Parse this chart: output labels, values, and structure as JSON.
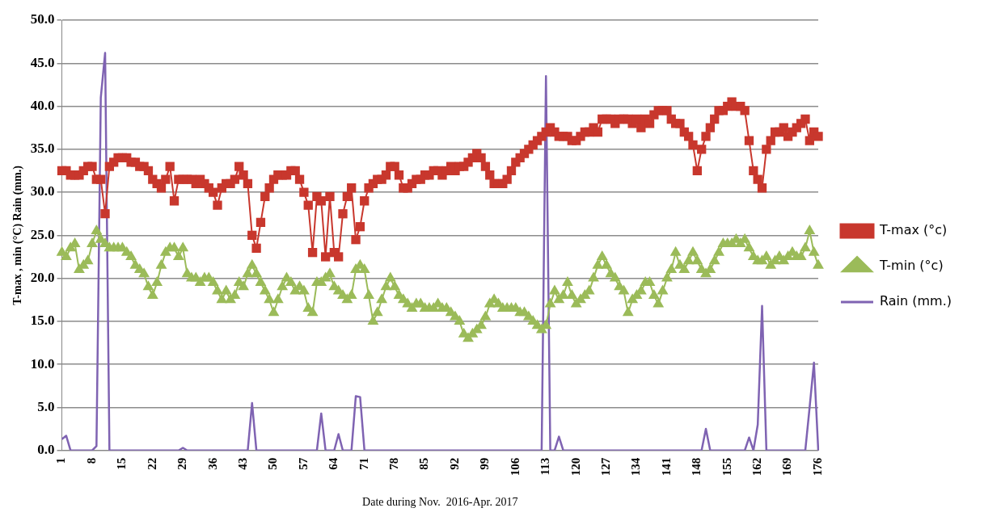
{
  "chart_data": {
    "type": "line",
    "ylabel": "T-max , min (°C) Rain (mm.)",
    "xlabel": "Date during Nov.  2016-Apr. 2017",
    "categories": [
      "1",
      null,
      null,
      null,
      null,
      null,
      null,
      "8",
      null,
      null,
      null,
      null,
      null,
      null,
      "15",
      null,
      null,
      null,
      null,
      null,
      null,
      "22",
      null,
      null,
      null,
      null,
      null,
      null,
      "29",
      null,
      null,
      null,
      null,
      null,
      null,
      "36",
      null,
      null,
      null,
      null,
      null,
      null,
      "43",
      null,
      null,
      null,
      null,
      null,
      null,
      "50",
      null,
      null,
      null,
      null,
      null,
      null,
      "57",
      null,
      null,
      null,
      null,
      null,
      null,
      "64",
      null,
      null,
      null,
      null,
      null,
      null,
      "71",
      null,
      null,
      null,
      null,
      null,
      null,
      "78",
      null,
      null,
      null,
      null,
      null,
      null,
      "85",
      null,
      null,
      null,
      null,
      null,
      null,
      "92",
      null,
      null,
      null,
      null,
      null,
      null,
      "99",
      null,
      null,
      null,
      null,
      null,
      null,
      "106",
      null,
      null,
      null,
      null,
      null,
      null,
      "113",
      null,
      null,
      null,
      null,
      null,
      null,
      "120",
      null,
      null,
      null,
      null,
      null,
      null,
      "127",
      null,
      null,
      null,
      null,
      null,
      null,
      "134",
      null,
      null,
      null,
      null,
      null,
      null,
      "141",
      null,
      null,
      null,
      null,
      null,
      null,
      "148",
      null,
      null,
      null,
      null,
      null,
      null,
      "155",
      null,
      null,
      null,
      null,
      null,
      null,
      "162",
      null,
      null,
      null,
      null,
      null,
      null,
      "169",
      null,
      null,
      null,
      null,
      null,
      null,
      "176"
    ],
    "series": [
      {
        "name": "T-max (°c)",
        "color": "#c8372d",
        "marker": "square",
        "values": [
          32.5,
          32.5,
          32,
          32,
          32,
          32.5,
          33,
          33,
          31.5,
          31.5,
          27.5,
          33,
          33.5,
          34,
          34,
          34,
          33.5,
          33.5,
          33,
          33,
          32.5,
          31.5,
          31,
          30.5,
          31.5,
          33,
          29,
          31.5,
          31.5,
          31.5,
          31.5,
          31,
          31.5,
          31,
          30.5,
          30,
          28.5,
          30.5,
          31,
          31,
          31.5,
          33,
          32,
          31,
          25,
          23.5,
          26.5,
          29.5,
          30.5,
          31.5,
          32,
          32,
          32,
          32.5,
          32.5,
          31.5,
          30,
          28.5,
          23,
          29.5,
          29,
          22.5,
          29.5,
          23,
          22.5,
          27.5,
          29.5,
          30.5,
          24.5,
          26,
          29,
          30.5,
          31,
          31.5,
          31.5,
          32,
          33,
          33,
          32,
          30.5,
          30.5,
          31,
          31.5,
          31.5,
          32,
          32,
          32.5,
          32.5,
          32,
          32.5,
          33,
          32.5,
          33,
          33,
          33.5,
          34,
          34.5,
          34,
          33,
          32,
          31,
          31,
          31,
          31.5,
          32.5,
          33.5,
          34,
          34.5,
          35,
          35.5,
          36,
          36.5,
          37,
          37.5,
          37,
          36.5,
          36.5,
          36.5,
          36,
          36,
          36.5,
          37,
          37,
          37.5,
          37,
          38.5,
          38.5,
          38.5,
          38,
          38.5,
          38.5,
          38.5,
          38,
          38.5,
          37.5,
          38.5,
          38,
          39,
          39.5,
          39.5,
          39.5,
          38.5,
          38,
          38,
          37,
          36.5,
          35.5,
          32.5,
          35,
          36.5,
          37.5,
          38.5,
          39.5,
          39.5,
          40,
          40.5,
          40,
          40,
          39.5,
          36,
          32.5,
          31.5,
          30.5,
          35,
          36,
          37,
          37,
          37.5,
          36.5,
          37,
          37.5,
          38,
          38.5,
          36,
          37,
          36.5
        ]
      },
      {
        "name": "T-min (°c)",
        "color": "#9bbb59",
        "marker": "triangle",
        "values": [
          23,
          22.5,
          23.5,
          24,
          21,
          21.5,
          22,
          24,
          25.5,
          24.5,
          24,
          23.5,
          23.5,
          23.5,
          23.5,
          23,
          22.5,
          21.5,
          21,
          20.5,
          19,
          18,
          19.5,
          21.5,
          23,
          23.5,
          23.5,
          22.5,
          23.5,
          20.5,
          20,
          20,
          19.5,
          20,
          20,
          19.5,
          18.5,
          17.5,
          18.5,
          17.5,
          18,
          19.5,
          19,
          20.5,
          21.5,
          20.5,
          19.5,
          18.5,
          17.5,
          16,
          17.5,
          19,
          20,
          19.5,
          18.5,
          19,
          18.5,
          16.5,
          16,
          19.5,
          19.5,
          20,
          20.5,
          19,
          18.5,
          18,
          17.5,
          18,
          21,
          21.5,
          21,
          18,
          15,
          16,
          17.5,
          19,
          20,
          19,
          18,
          17.5,
          17,
          16.5,
          17,
          17,
          16.5,
          16.5,
          16.5,
          17,
          16.5,
          16.5,
          16,
          15.5,
          15,
          13.5,
          13,
          13.5,
          14,
          14.5,
          15.5,
          17,
          17.5,
          17,
          16.5,
          16.5,
          16.5,
          16.5,
          16,
          16,
          15.5,
          15,
          14.5,
          14,
          14.5,
          17,
          18.5,
          17.5,
          18,
          19.5,
          18,
          17,
          17.5,
          18,
          18.5,
          20,
          21.5,
          22.5,
          21.5,
          20.5,
          20,
          19,
          18.5,
          16,
          17.5,
          18,
          18.5,
          19.5,
          19.5,
          18,
          17,
          18.5,
          20,
          21,
          23,
          21.5,
          21,
          22,
          23,
          22,
          21,
          20.5,
          21,
          22,
          23,
          24,
          24,
          24,
          24.5,
          24,
          24.5,
          23.5,
          22.5,
          22,
          22,
          22.5,
          21.5,
          22,
          22.5,
          22,
          22.5,
          23,
          22.5,
          22.5,
          23.5,
          25.5,
          23,
          21.5
        ]
      },
      {
        "name": "Rain (mm.)",
        "color": "#7f63b2",
        "marker": "none",
        "values": [
          1.3,
          1.7,
          0,
          0,
          0,
          0,
          0,
          0,
          0.5,
          41,
          46.2,
          0,
          0,
          0,
          0,
          0,
          0,
          0,
          0,
          0,
          0,
          0,
          0,
          0,
          0,
          0,
          0,
          0,
          0.3,
          0,
          0,
          0,
          0,
          0,
          0,
          0,
          0,
          0,
          0,
          0,
          0,
          0,
          0,
          0,
          5.5,
          0,
          0,
          0,
          0,
          0,
          0,
          0,
          0,
          0,
          0,
          0,
          0,
          0,
          0,
          0,
          4.3,
          0,
          0,
          0,
          1.9,
          0,
          0,
          0,
          6.3,
          6.2,
          0,
          0,
          0,
          0,
          0,
          0,
          0,
          0,
          0,
          0,
          0,
          0,
          0,
          0,
          0,
          0,
          0,
          0,
          0,
          0,
          0,
          0,
          0,
          0,
          0,
          0,
          0,
          0,
          0,
          0,
          0,
          0,
          0,
          0,
          0,
          0,
          0,
          0,
          0,
          0,
          0,
          0,
          43.5,
          0,
          0,
          1.6,
          0,
          0,
          0,
          0,
          0,
          0,
          0,
          0,
          0,
          0,
          0,
          0,
          0,
          0,
          0,
          0,
          0,
          0,
          0,
          0,
          0,
          0,
          0,
          0,
          0,
          0,
          0,
          0,
          0,
          0,
          0,
          0,
          0,
          2.5,
          0,
          0,
          0,
          0,
          0,
          0,
          0,
          0,
          0,
          1.5,
          0,
          3,
          16.8,
          0,
          0,
          0,
          0,
          0,
          0,
          0,
          0,
          0,
          0,
          5,
          10.2,
          0
        ]
      }
    ],
    "ylim": [
      0,
      50
    ],
    "yticks": [
      {
        "value": 0,
        "label": "0.0"
      },
      {
        "value": 5,
        "label": "5.0"
      },
      {
        "value": 10,
        "label": "10.0"
      },
      {
        "value": 15,
        "label": "15.0"
      },
      {
        "value": 20,
        "label": "20.0"
      },
      {
        "value": 25,
        "label": "25.0"
      },
      {
        "value": 30,
        "label": "30.0"
      },
      {
        "value": 35,
        "label": "35.0"
      },
      {
        "value": 40,
        "label": "40.0"
      },
      {
        "value": 45,
        "label": "45.0"
      },
      {
        "value": 50,
        "label": "50.0"
      }
    ],
    "grid": "y",
    "legend": "right"
  }
}
